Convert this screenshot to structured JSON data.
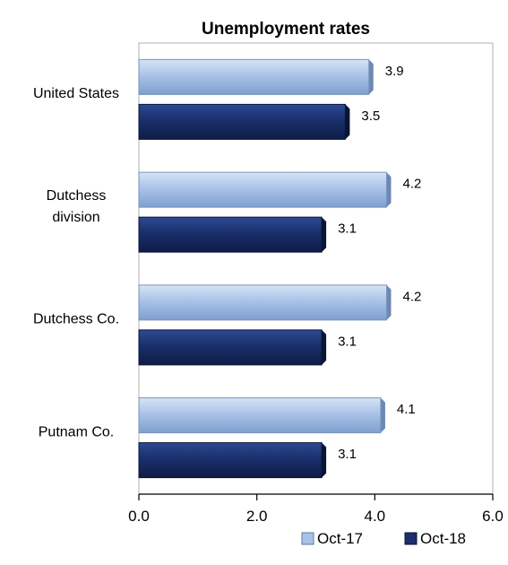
{
  "chart_data": {
    "type": "bar",
    "orientation": "horizontal",
    "title": "Unemployment rates",
    "categories": [
      "United States",
      "Dutchess division",
      "Dutchess Co.",
      "Putnam Co."
    ],
    "category_lines": [
      [
        "United States"
      ],
      [
        "Dutchess",
        "division"
      ],
      [
        "Dutchess Co."
      ],
      [
        "Putnam Co."
      ]
    ],
    "series": [
      {
        "name": "Oct-17",
        "values": [
          3.9,
          4.2,
          4.2,
          4.1
        ],
        "color": "#a9c3e8"
      },
      {
        "name": "Oct-18",
        "values": [
          3.5,
          3.1,
          3.1,
          3.1
        ],
        "color": "#1a2f6b"
      }
    ],
    "xlim": [
      0,
      6
    ],
    "xticks": [
      "0.0",
      "2.0",
      "4.0",
      "6.0"
    ],
    "xlabel": "",
    "ylabel": "",
    "grid": false,
    "legend_position": "bottom-right"
  }
}
